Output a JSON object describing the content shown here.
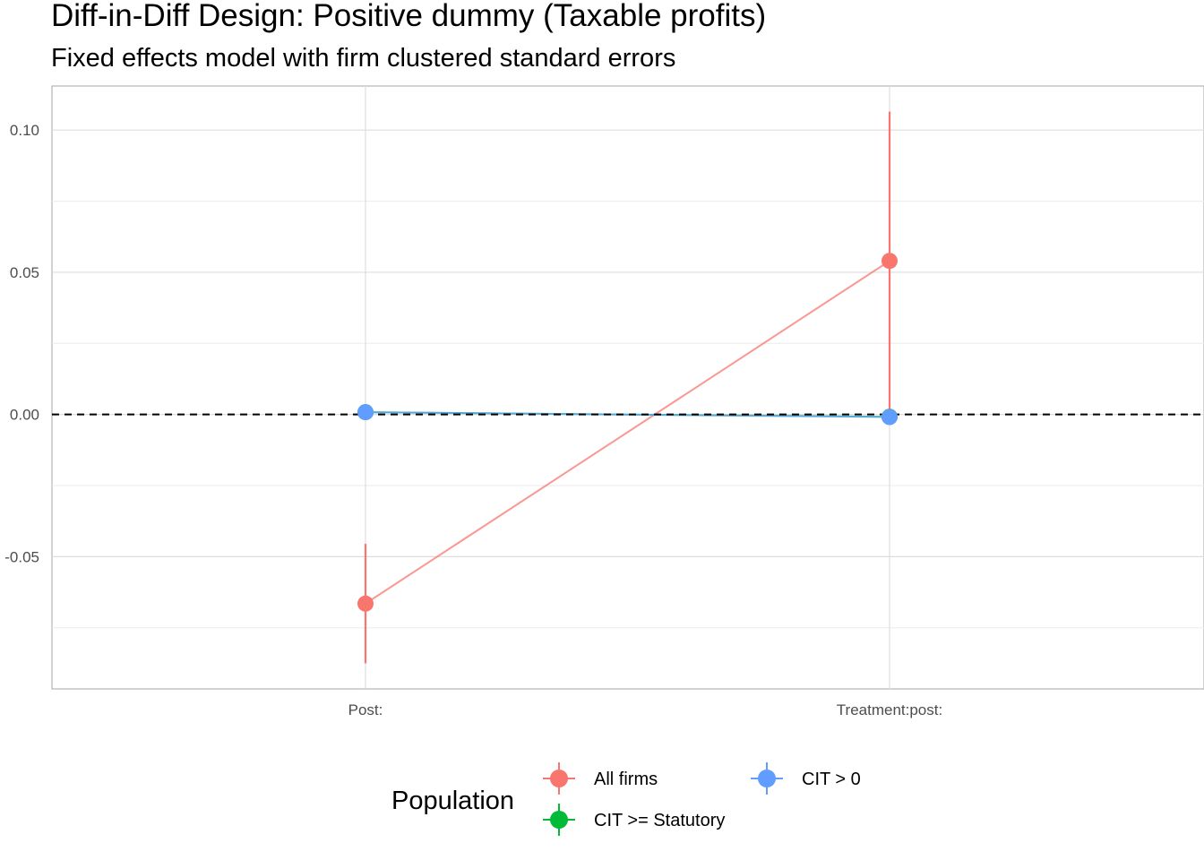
{
  "chart_data": {
    "type": "scatter",
    "title": "Diff-in-Diff Design: Positive dummy (Taxable profits)",
    "subtitle": "Fixed effects model with firm clustered standard errors",
    "xlabel": "",
    "ylabel": "",
    "categories": [
      "Post:",
      "Treatment:post:"
    ],
    "ylim": [
      -0.0965,
      0.1155
    ],
    "yticks": [
      0.1,
      0.05,
      0.0,
      -0.05
    ],
    "ytick_labels": [
      "0.10",
      "0.05",
      "0.00",
      "-0.05"
    ],
    "reference_line": 0,
    "grid": true,
    "legend": {
      "title": "Population",
      "position": "bottom"
    },
    "series": [
      {
        "name": "All firms",
        "color": "#F8766D",
        "values": [
          -0.0665,
          0.054
        ],
        "lower": [
          -0.0875,
          0.0
        ],
        "upper": [
          -0.0455,
          0.1065
        ]
      },
      {
        "name": "CIT >= Statutory",
        "color": "#00BA38",
        "values": [
          0.0008,
          -0.0008
        ],
        "lower": [
          0.0004,
          -0.0012
        ],
        "upper": [
          0.0012,
          -0.0004
        ]
      },
      {
        "name": "CIT > 0",
        "color": "#619CFF",
        "values": [
          0.0008,
          -0.0009
        ],
        "lower": [
          0.0004,
          -0.0013
        ],
        "upper": [
          0.0012,
          -0.0005
        ]
      }
    ]
  }
}
